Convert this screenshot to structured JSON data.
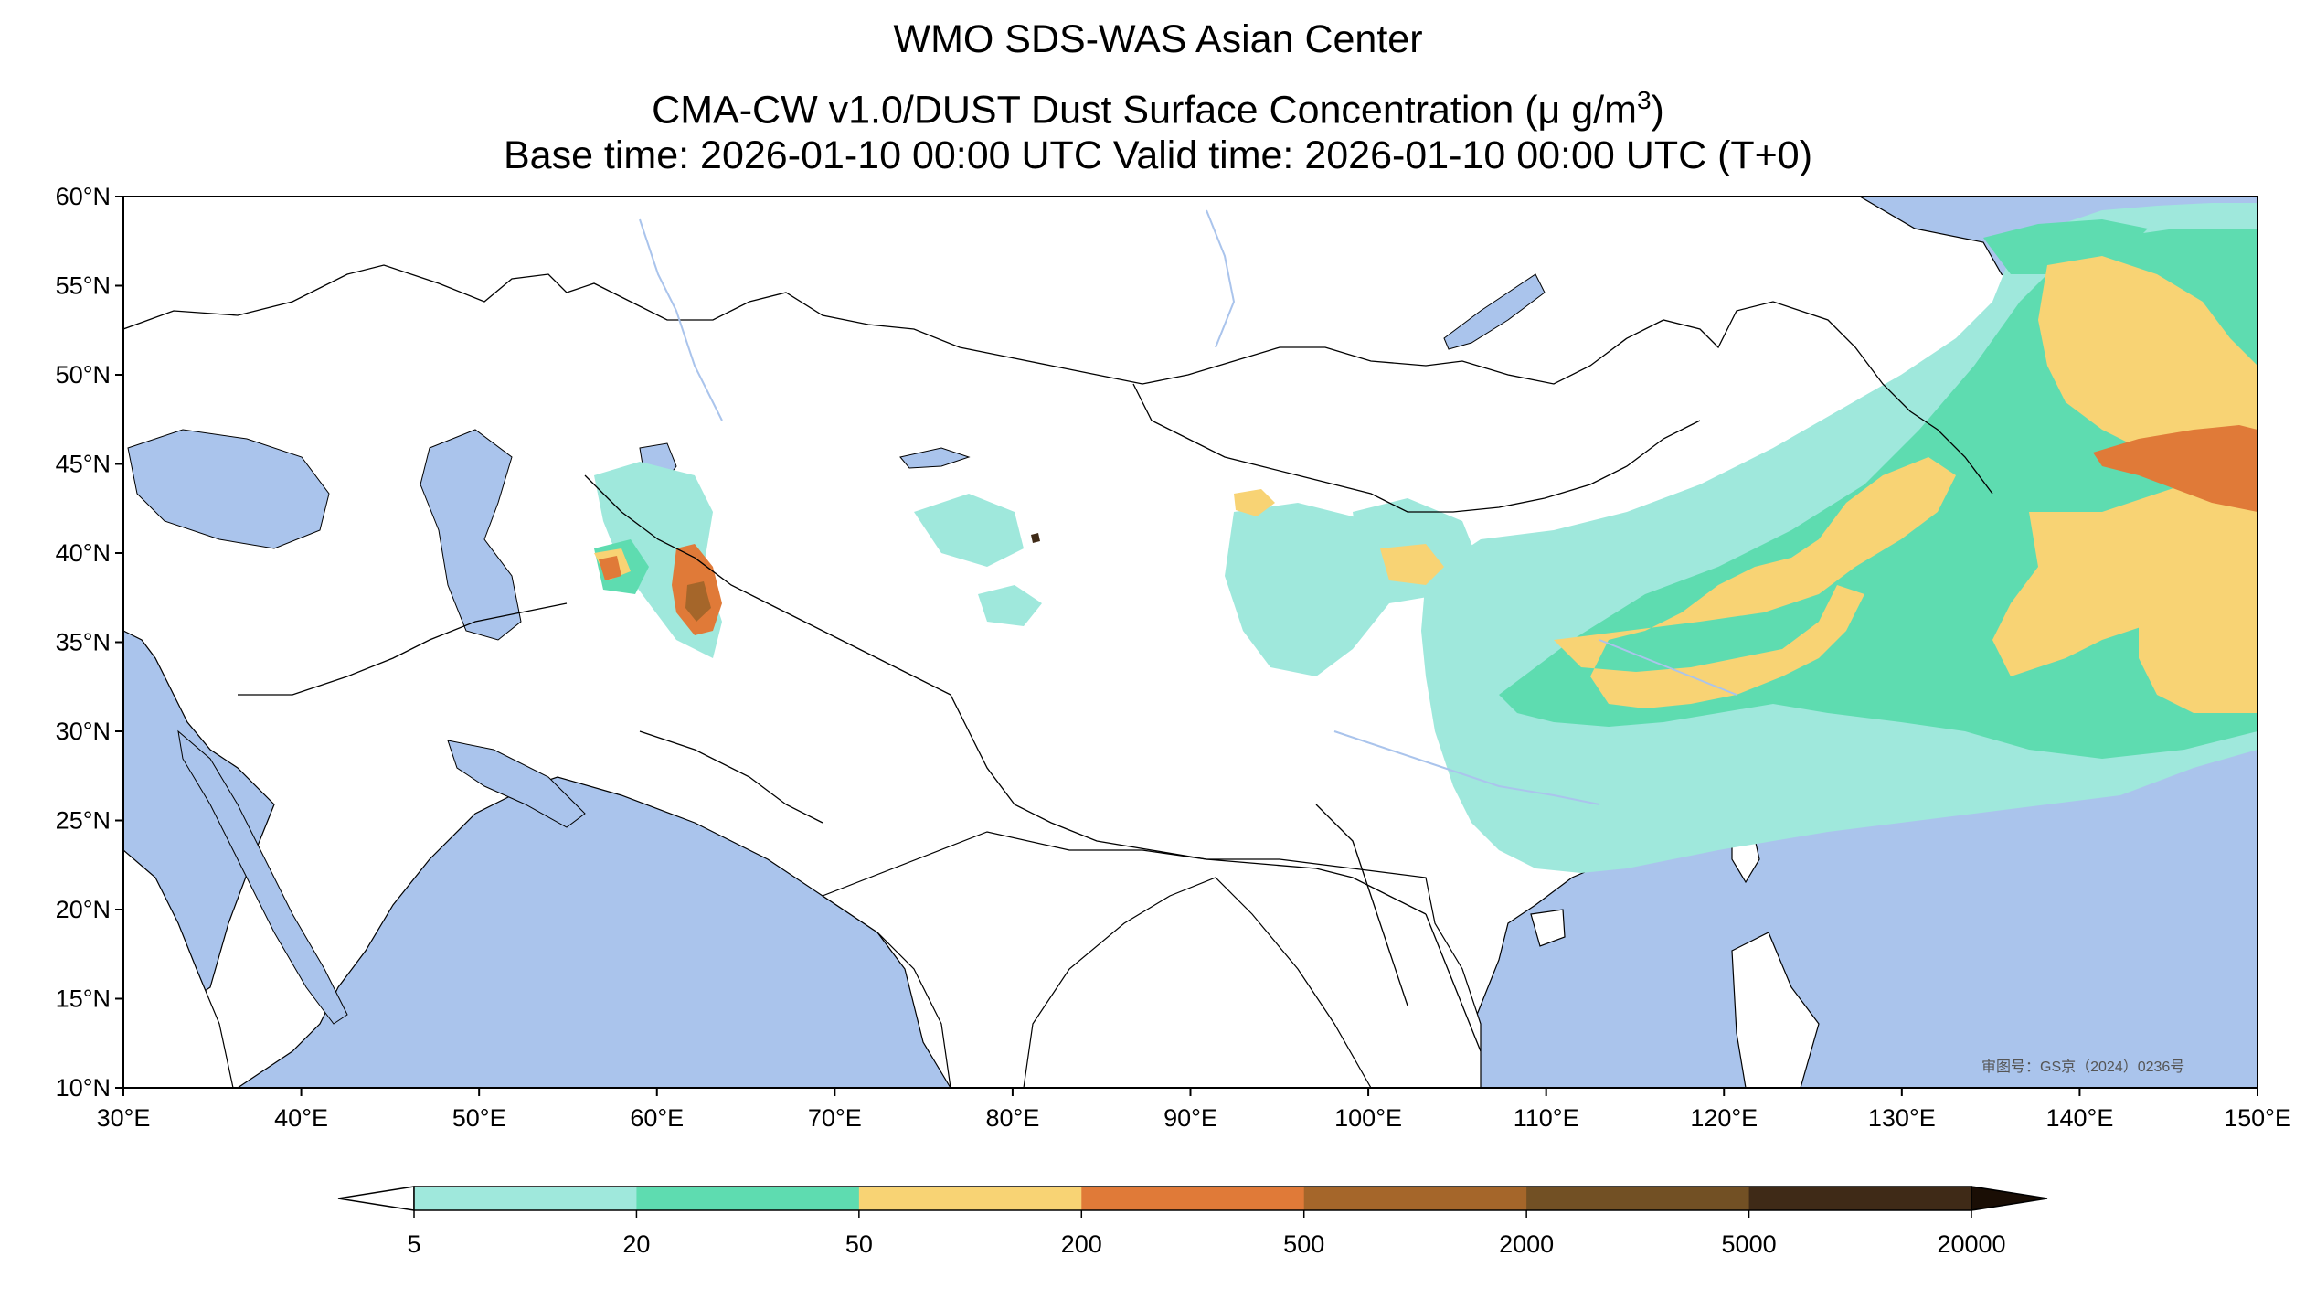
{
  "titles": {
    "line1": "WMO SDS-WAS Asian Center",
    "line2_prefix": "CMA-CW v1.0/DUST Dust Surface Concentration (",
    "line2_unit_base": "μ g/m",
    "line2_unit_exp": "3",
    "line2_suffix": ")",
    "line3": "Base time: 2026-01-10 00:00 UTC Valid time: 2026-01-10 00:00 UTC (T+0)"
  },
  "axes": {
    "lon_labels": [
      "30°E",
      "40°E",
      "50°E",
      "60°E",
      "70°E",
      "80°E",
      "90°E",
      "100°E",
      "110°E",
      "120°E",
      "130°E",
      "140°E",
      "150°E"
    ],
    "lat_labels": [
      "60°N",
      "55°N",
      "50°N",
      "45°N",
      "40°N",
      "35°N",
      "30°N",
      "25°N",
      "20°N",
      "15°N",
      "10°N"
    ],
    "lon_range": [
      30,
      150
    ],
    "lat_range": [
      10,
      60
    ]
  },
  "colorbar": {
    "labels": [
      "5",
      "20",
      "50",
      "200",
      "500",
      "2000",
      "5000",
      "20000"
    ],
    "colors": [
      "#9fe8dc",
      "#5edcb0",
      "#f8d374",
      "#e07a38",
      "#a5662a",
      "#725024",
      "#3f2a17"
    ],
    "under_color": "#ffffff",
    "over_color": "#1a0e05"
  },
  "map": {
    "ocean_color": "#aac4ec",
    "land_color": "#ffffff",
    "approval_note": "审图号：GS京（2024）0236号"
  }
}
